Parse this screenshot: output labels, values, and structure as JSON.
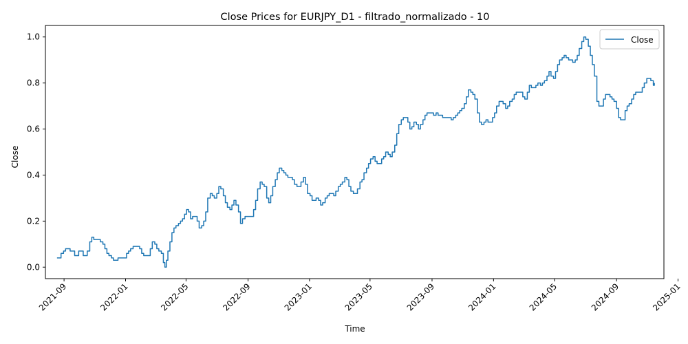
{
  "chart_data": {
    "type": "line",
    "title": "Close Prices for EURJPY_D1 - filtrado_normalizado - 10",
    "xlabel": "Time",
    "ylabel": "Close",
    "xlim": [
      "2021-07-26",
      "2024-12-04"
    ],
    "ylim": [
      -0.05,
      1.05
    ],
    "yticks": [
      0.0,
      0.2,
      0.4,
      0.6,
      0.8,
      1.0
    ],
    "ytick_labels": [
      "0.0",
      "0.2",
      "0.4",
      "0.6",
      "0.8",
      "1.0"
    ],
    "xticks": [
      "2021-09-01",
      "2022-01-01",
      "2022-05-01",
      "2022-09-01",
      "2023-01-01",
      "2023-05-01",
      "2023-09-01",
      "2024-01-01",
      "2024-05-01",
      "2024-09-01",
      "2025-01-01"
    ],
    "xtick_labels": [
      "2021-09",
      "2022-01",
      "2022-05",
      "2022-09",
      "2023-01",
      "2023-05",
      "2023-09",
      "2024-01",
      "2024-05",
      "2024-09",
      "2025-01"
    ],
    "grid": false,
    "legend": "top-right",
    "series": [
      {
        "name": "Close",
        "color": "#1f77b4",
        "points": [
          [
            "2021-08-18",
            0.04
          ],
          [
            "2021-08-22",
            0.04
          ],
          [
            "2021-08-26",
            0.06
          ],
          [
            "2021-08-31",
            0.07
          ],
          [
            "2021-09-04",
            0.08
          ],
          [
            "2021-09-09",
            0.08
          ],
          [
            "2021-09-13",
            0.07
          ],
          [
            "2021-09-17",
            0.07
          ],
          [
            "2021-09-22",
            0.05
          ],
          [
            "2021-09-26",
            0.05
          ],
          [
            "2021-09-30",
            0.07
          ],
          [
            "2021-10-05",
            0.07
          ],
          [
            "2021-10-09",
            0.05
          ],
          [
            "2021-10-13",
            0.05
          ],
          [
            "2021-10-17",
            0.07
          ],
          [
            "2021-10-22",
            0.11
          ],
          [
            "2021-10-26",
            0.13
          ],
          [
            "2021-10-30",
            0.12
          ],
          [
            "2021-11-04",
            0.12
          ],
          [
            "2021-11-08",
            0.12
          ],
          [
            "2021-11-12",
            0.11
          ],
          [
            "2021-11-17",
            0.1
          ],
          [
            "2021-11-21",
            0.08
          ],
          [
            "2021-11-25",
            0.06
          ],
          [
            "2021-11-29",
            0.05
          ],
          [
            "2021-12-04",
            0.04
          ],
          [
            "2021-12-08",
            0.03
          ],
          [
            "2021-12-12",
            0.03
          ],
          [
            "2021-12-17",
            0.04
          ],
          [
            "2021-12-21",
            0.04
          ],
          [
            "2021-12-25",
            0.04
          ],
          [
            "2021-12-30",
            0.04
          ],
          [
            "2022-01-03",
            0.06
          ],
          [
            "2022-01-07",
            0.07
          ],
          [
            "2022-01-11",
            0.08
          ],
          [
            "2022-01-16",
            0.09
          ],
          [
            "2022-01-20",
            0.09
          ],
          [
            "2022-01-24",
            0.09
          ],
          [
            "2022-01-29",
            0.08
          ],
          [
            "2022-02-02",
            0.06
          ],
          [
            "2022-02-06",
            0.05
          ],
          [
            "2022-02-10",
            0.05
          ],
          [
            "2022-02-15",
            0.05
          ],
          [
            "2022-02-19",
            0.08
          ],
          [
            "2022-02-23",
            0.11
          ],
          [
            "2022-02-28",
            0.1
          ],
          [
            "2022-03-04",
            0.08
          ],
          [
            "2022-03-08",
            0.07
          ],
          [
            "2022-03-13",
            0.06
          ],
          [
            "2022-03-17",
            0.02
          ],
          [
            "2022-03-20",
            0.0
          ],
          [
            "2022-03-23",
            0.03
          ],
          [
            "2022-03-26",
            0.07
          ],
          [
            "2022-03-30",
            0.11
          ],
          [
            "2022-04-03",
            0.15
          ],
          [
            "2022-04-07",
            0.17
          ],
          [
            "2022-04-11",
            0.18
          ],
          [
            "2022-04-16",
            0.19
          ],
          [
            "2022-04-20",
            0.2
          ],
          [
            "2022-04-24",
            0.21
          ],
          [
            "2022-04-28",
            0.23
          ],
          [
            "2022-05-02",
            0.25
          ],
          [
            "2022-05-06",
            0.24
          ],
          [
            "2022-05-10",
            0.21
          ],
          [
            "2022-05-14",
            0.22
          ],
          [
            "2022-05-19",
            0.22
          ],
          [
            "2022-05-23",
            0.2
          ],
          [
            "2022-05-27",
            0.17
          ],
          [
            "2022-06-01",
            0.18
          ],
          [
            "2022-06-05",
            0.2
          ],
          [
            "2022-06-09",
            0.24
          ],
          [
            "2022-06-13",
            0.3
          ],
          [
            "2022-06-18",
            0.32
          ],
          [
            "2022-06-22",
            0.31
          ],
          [
            "2022-06-26",
            0.3
          ],
          [
            "2022-07-01",
            0.32
          ],
          [
            "2022-07-05",
            0.35
          ],
          [
            "2022-07-09",
            0.34
          ],
          [
            "2022-07-14",
            0.31
          ],
          [
            "2022-07-18",
            0.28
          ],
          [
            "2022-07-22",
            0.26
          ],
          [
            "2022-07-27",
            0.25
          ],
          [
            "2022-07-31",
            0.27
          ],
          [
            "2022-08-04",
            0.29
          ],
          [
            "2022-08-08",
            0.27
          ],
          [
            "2022-08-13",
            0.24
          ],
          [
            "2022-08-17",
            0.19
          ],
          [
            "2022-08-21",
            0.21
          ],
          [
            "2022-08-26",
            0.22
          ],
          [
            "2022-08-30",
            0.22
          ],
          [
            "2022-09-03",
            0.22
          ],
          [
            "2022-09-07",
            0.22
          ],
          [
            "2022-09-12",
            0.25
          ],
          [
            "2022-09-16",
            0.29
          ],
          [
            "2022-09-20",
            0.34
          ],
          [
            "2022-09-25",
            0.37
          ],
          [
            "2022-09-29",
            0.36
          ],
          [
            "2022-10-03",
            0.35
          ],
          [
            "2022-10-08",
            0.3
          ],
          [
            "2022-10-12",
            0.28
          ],
          [
            "2022-10-16",
            0.31
          ],
          [
            "2022-10-20",
            0.35
          ],
          [
            "2022-10-25",
            0.38
          ],
          [
            "2022-10-29",
            0.41
          ],
          [
            "2022-11-02",
            0.43
          ],
          [
            "2022-11-07",
            0.42
          ],
          [
            "2022-11-11",
            0.41
          ],
          [
            "2022-11-15",
            0.4
          ],
          [
            "2022-11-19",
            0.39
          ],
          [
            "2022-11-24",
            0.39
          ],
          [
            "2022-11-28",
            0.38
          ],
          [
            "2022-12-02",
            0.36
          ],
          [
            "2022-12-07",
            0.35
          ],
          [
            "2022-12-11",
            0.35
          ],
          [
            "2022-12-15",
            0.37
          ],
          [
            "2022-12-20",
            0.39
          ],
          [
            "2022-12-24",
            0.36
          ],
          [
            "2022-12-28",
            0.32
          ],
          [
            "2023-01-02",
            0.31
          ],
          [
            "2023-01-06",
            0.29
          ],
          [
            "2023-01-10",
            0.29
          ],
          [
            "2023-01-14",
            0.3
          ],
          [
            "2023-01-19",
            0.29
          ],
          [
            "2023-01-23",
            0.27
          ],
          [
            "2023-01-27",
            0.28
          ],
          [
            "2023-02-01",
            0.3
          ],
          [
            "2023-02-05",
            0.31
          ],
          [
            "2023-02-09",
            0.32
          ],
          [
            "2023-02-14",
            0.32
          ],
          [
            "2023-02-18",
            0.31
          ],
          [
            "2023-02-22",
            0.33
          ],
          [
            "2023-02-27",
            0.35
          ],
          [
            "2023-03-03",
            0.36
          ],
          [
            "2023-03-07",
            0.37
          ],
          [
            "2023-03-12",
            0.39
          ],
          [
            "2023-03-16",
            0.38
          ],
          [
            "2023-03-20",
            0.35
          ],
          [
            "2023-03-24",
            0.33
          ],
          [
            "2023-03-29",
            0.32
          ],
          [
            "2023-04-02",
            0.32
          ],
          [
            "2023-04-06",
            0.34
          ],
          [
            "2023-04-11",
            0.37
          ],
          [
            "2023-04-15",
            0.38
          ],
          [
            "2023-04-19",
            0.41
          ],
          [
            "2023-04-24",
            0.43
          ],
          [
            "2023-04-28",
            0.45
          ],
          [
            "2023-05-02",
            0.47
          ],
          [
            "2023-05-07",
            0.48
          ],
          [
            "2023-05-11",
            0.46
          ],
          [
            "2023-05-15",
            0.45
          ],
          [
            "2023-05-20",
            0.45
          ],
          [
            "2023-05-24",
            0.47
          ],
          [
            "2023-05-28",
            0.48
          ],
          [
            "2023-06-01",
            0.5
          ],
          [
            "2023-06-06",
            0.49
          ],
          [
            "2023-06-10",
            0.48
          ],
          [
            "2023-06-14",
            0.5
          ],
          [
            "2023-06-19",
            0.53
          ],
          [
            "2023-06-23",
            0.58
          ],
          [
            "2023-06-27",
            0.62
          ],
          [
            "2023-07-02",
            0.64
          ],
          [
            "2023-07-06",
            0.65
          ],
          [
            "2023-07-10",
            0.65
          ],
          [
            "2023-07-15",
            0.63
          ],
          [
            "2023-07-19",
            0.6
          ],
          [
            "2023-07-23",
            0.61
          ],
          [
            "2023-07-27",
            0.63
          ],
          [
            "2023-08-01",
            0.62
          ],
          [
            "2023-08-05",
            0.6
          ],
          [
            "2023-08-09",
            0.62
          ],
          [
            "2023-08-14",
            0.64
          ],
          [
            "2023-08-18",
            0.66
          ],
          [
            "2023-08-22",
            0.67
          ],
          [
            "2023-08-27",
            0.67
          ],
          [
            "2023-08-31",
            0.67
          ],
          [
            "2023-09-04",
            0.66
          ],
          [
            "2023-09-09",
            0.67
          ],
          [
            "2023-09-13",
            0.66
          ],
          [
            "2023-09-17",
            0.66
          ],
          [
            "2023-09-22",
            0.65
          ],
          [
            "2023-09-26",
            0.65
          ],
          [
            "2023-09-30",
            0.65
          ],
          [
            "2023-10-05",
            0.65
          ],
          [
            "2023-10-09",
            0.64
          ],
          [
            "2023-10-13",
            0.65
          ],
          [
            "2023-10-18",
            0.66
          ],
          [
            "2023-10-22",
            0.67
          ],
          [
            "2023-10-26",
            0.68
          ],
          [
            "2023-10-30",
            0.69
          ],
          [
            "2023-11-04",
            0.71
          ],
          [
            "2023-11-08",
            0.74
          ],
          [
            "2023-11-12",
            0.77
          ],
          [
            "2023-11-17",
            0.76
          ],
          [
            "2023-11-21",
            0.75
          ],
          [
            "2023-11-25",
            0.73
          ],
          [
            "2023-11-30",
            0.67
          ],
          [
            "2023-12-04",
            0.63
          ],
          [
            "2023-12-08",
            0.62
          ],
          [
            "2023-12-13",
            0.63
          ],
          [
            "2023-12-17",
            0.64
          ],
          [
            "2023-12-21",
            0.63
          ],
          [
            "2023-12-25",
            0.63
          ],
          [
            "2023-12-30",
            0.65
          ],
          [
            "2024-01-03",
            0.67
          ],
          [
            "2024-01-07",
            0.7
          ],
          [
            "2024-01-12",
            0.72
          ],
          [
            "2024-01-16",
            0.72
          ],
          [
            "2024-01-20",
            0.71
          ],
          [
            "2024-01-25",
            0.69
          ],
          [
            "2024-01-29",
            0.7
          ],
          [
            "2024-02-02",
            0.72
          ],
          [
            "2024-02-07",
            0.73
          ],
          [
            "2024-02-11",
            0.75
          ],
          [
            "2024-02-15",
            0.76
          ],
          [
            "2024-02-19",
            0.76
          ],
          [
            "2024-02-24",
            0.76
          ],
          [
            "2024-02-28",
            0.74
          ],
          [
            "2024-03-03",
            0.73
          ],
          [
            "2024-03-08",
            0.76
          ],
          [
            "2024-03-12",
            0.79
          ],
          [
            "2024-03-16",
            0.78
          ],
          [
            "2024-03-21",
            0.78
          ],
          [
            "2024-03-25",
            0.79
          ],
          [
            "2024-03-29",
            0.8
          ],
          [
            "2024-04-03",
            0.79
          ],
          [
            "2024-04-07",
            0.8
          ],
          [
            "2024-04-11",
            0.81
          ],
          [
            "2024-04-16",
            0.83
          ],
          [
            "2024-04-20",
            0.85
          ],
          [
            "2024-04-24",
            0.83
          ],
          [
            "2024-04-29",
            0.82
          ],
          [
            "2024-05-03",
            0.85
          ],
          [
            "2024-05-07",
            0.88
          ],
          [
            "2024-05-11",
            0.9
          ],
          [
            "2024-05-16",
            0.91
          ],
          [
            "2024-05-20",
            0.92
          ],
          [
            "2024-05-24",
            0.91
          ],
          [
            "2024-05-29",
            0.9
          ],
          [
            "2024-06-02",
            0.9
          ],
          [
            "2024-06-06",
            0.89
          ],
          [
            "2024-06-11",
            0.9
          ],
          [
            "2024-06-15",
            0.92
          ],
          [
            "2024-06-19",
            0.95
          ],
          [
            "2024-06-24",
            0.98
          ],
          [
            "2024-06-28",
            1.0
          ],
          [
            "2024-07-02",
            0.99
          ],
          [
            "2024-07-07",
            0.96
          ],
          [
            "2024-07-11",
            0.92
          ],
          [
            "2024-07-15",
            0.88
          ],
          [
            "2024-07-19",
            0.83
          ],
          [
            "2024-07-24",
            0.72
          ],
          [
            "2024-07-28",
            0.7
          ],
          [
            "2024-08-01",
            0.7
          ],
          [
            "2024-08-06",
            0.73
          ],
          [
            "2024-08-10",
            0.75
          ],
          [
            "2024-08-14",
            0.75
          ],
          [
            "2024-08-19",
            0.74
          ],
          [
            "2024-08-23",
            0.73
          ],
          [
            "2024-08-27",
            0.72
          ],
          [
            "2024-09-01",
            0.69
          ],
          [
            "2024-09-05",
            0.65
          ],
          [
            "2024-09-09",
            0.64
          ],
          [
            "2024-09-14",
            0.64
          ],
          [
            "2024-09-18",
            0.68
          ],
          [
            "2024-09-22",
            0.7
          ],
          [
            "2024-09-26",
            0.71
          ],
          [
            "2024-10-01",
            0.73
          ],
          [
            "2024-10-05",
            0.75
          ],
          [
            "2024-10-09",
            0.76
          ],
          [
            "2024-10-14",
            0.76
          ],
          [
            "2024-10-18",
            0.76
          ],
          [
            "2024-10-22",
            0.78
          ],
          [
            "2024-10-26",
            0.8
          ],
          [
            "2024-10-31",
            0.82
          ],
          [
            "2024-11-04",
            0.82
          ],
          [
            "2024-11-08",
            0.81
          ],
          [
            "2024-11-13",
            0.79
          ],
          [
            "2024-11-15",
            0.8
          ]
        ]
      }
    ]
  }
}
